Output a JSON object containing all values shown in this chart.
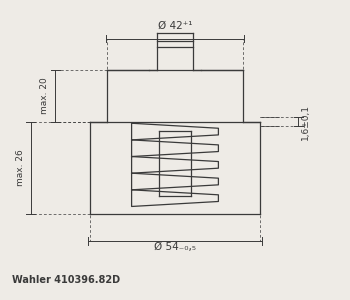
{
  "bg_color": "#eeebe6",
  "line_color": "#3a3a3a",
  "title_text": "Wahler 410396.82D",
  "dim_top": "Ø 42⁺¹",
  "dim_bottom": "Ø 54₋₀,₅",
  "dim_left_top": "max. 20",
  "dim_left_bot": "max. 26",
  "dim_right": "1,6±0,1"
}
